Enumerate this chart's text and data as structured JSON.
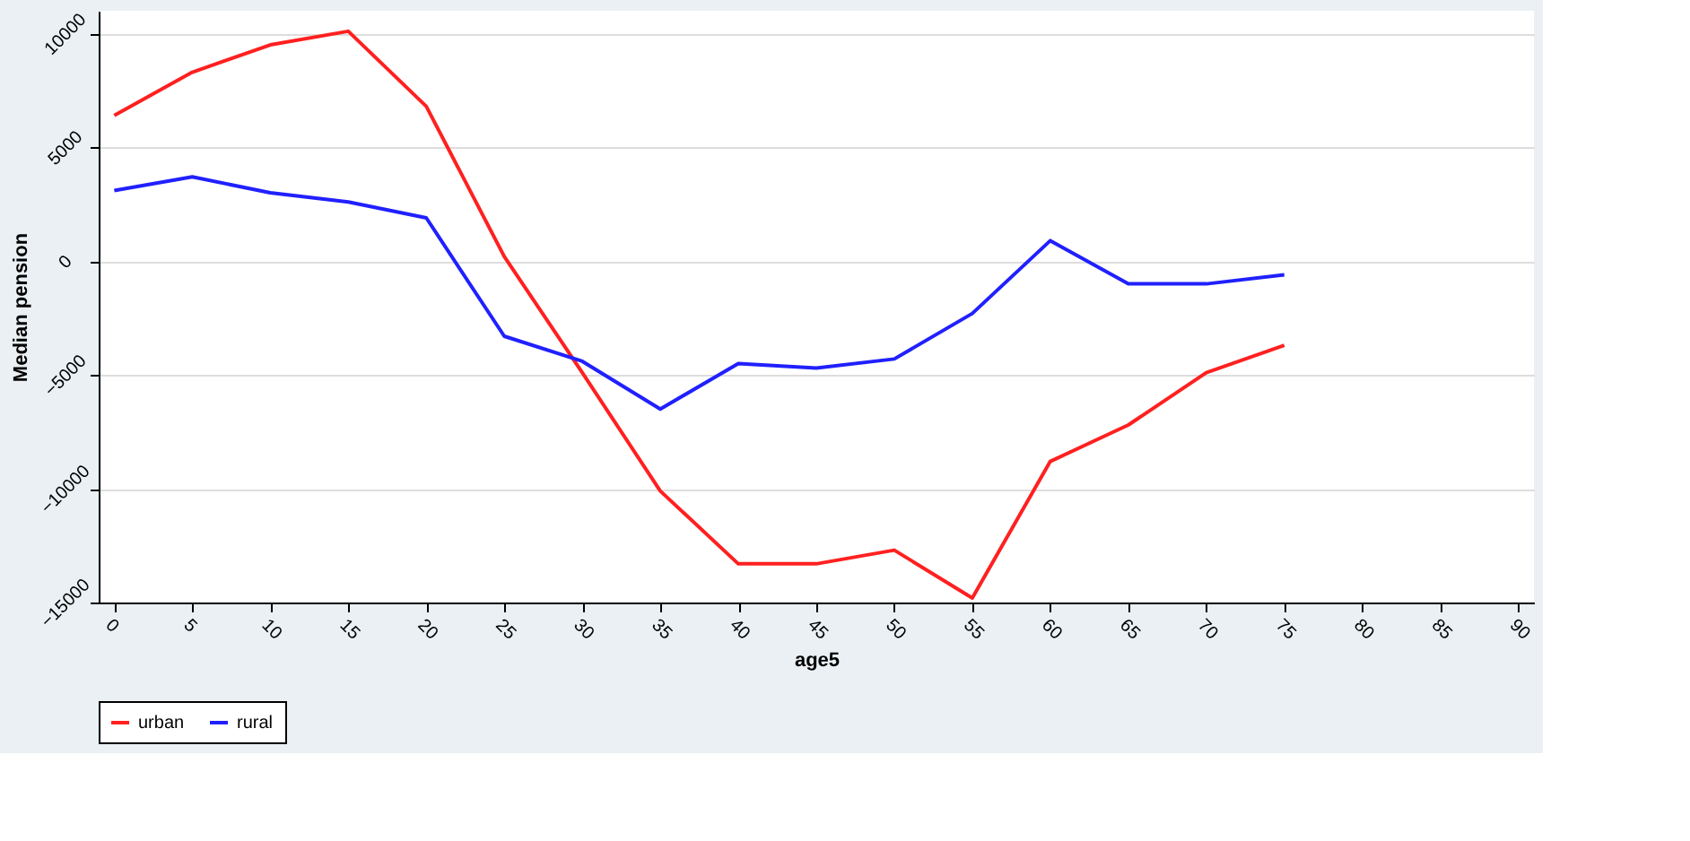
{
  "chart_data": {
    "type": "line",
    "xlabel": "age5",
    "ylabel": "Median pension",
    "x": [
      0,
      5,
      10,
      15,
      20,
      25,
      30,
      35,
      40,
      45,
      50,
      55,
      60,
      65,
      70,
      75
    ],
    "series": [
      {
        "name": "urban",
        "color": "#ff2020",
        "values": [
          6400,
          8300,
          9500,
          10100,
          6800,
          200,
          -4900,
          -10100,
          -13300,
          -13300,
          -12700,
          -14800,
          -8800,
          -7200,
          -4900,
          -3700
        ]
      },
      {
        "name": "rural",
        "color": "#2020ff",
        "values": [
          3100,
          3700,
          3000,
          2600,
          1900,
          -3300,
          -4400,
          -6500,
          -4500,
          -4700,
          -4300,
          -2300,
          900,
          -1000,
          -1000,
          -600
        ]
      }
    ],
    "xlim": [
      -1,
      91
    ],
    "xticks": [
      0,
      5,
      10,
      15,
      20,
      25,
      30,
      35,
      40,
      45,
      50,
      55,
      60,
      65,
      70,
      75,
      80,
      85,
      90
    ],
    "ylim": [
      -15000,
      11000
    ],
    "yticks": [
      -15000,
      -10000,
      -5000,
      0,
      5000,
      10000
    ],
    "grid": "y",
    "legend": "bottom",
    "marker": "none",
    "line_style": "solid"
  }
}
